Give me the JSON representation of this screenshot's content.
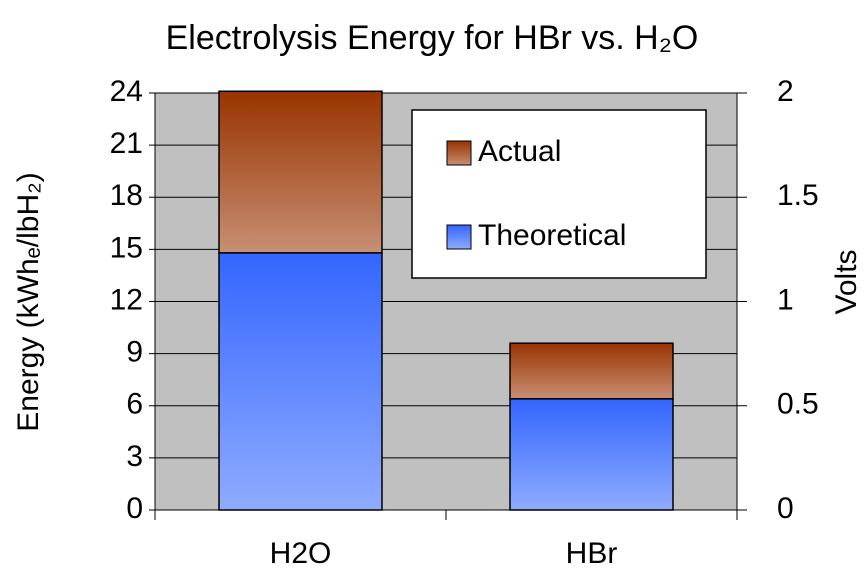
{
  "chart_data": {
    "type": "bar",
    "stacked": true,
    "title": "Electrolysis Energy for HBr vs. H₂O",
    "y_label": "Energy (kWhₑ/lbH₂)",
    "y2_label": "Volts",
    "categories": [
      "H2O",
      "HBr"
    ],
    "series": [
      {
        "name": "Theoretical",
        "color": "#3366ff",
        "values": [
          14.8,
          6.4
        ]
      },
      {
        "name": "Actual",
        "color": "#993300",
        "values": [
          9.3,
          3.2
        ]
      }
    ],
    "ylim": [
      0,
      24
    ],
    "yticks": [
      0,
      3,
      6,
      9,
      12,
      15,
      18,
      21,
      24
    ],
    "y2lim": [
      0,
      2
    ],
    "y2ticks": [
      0,
      0.5,
      1,
      1.5,
      2
    ],
    "grid": true,
    "legend": "upper right",
    "background": "#c0c0c0"
  }
}
